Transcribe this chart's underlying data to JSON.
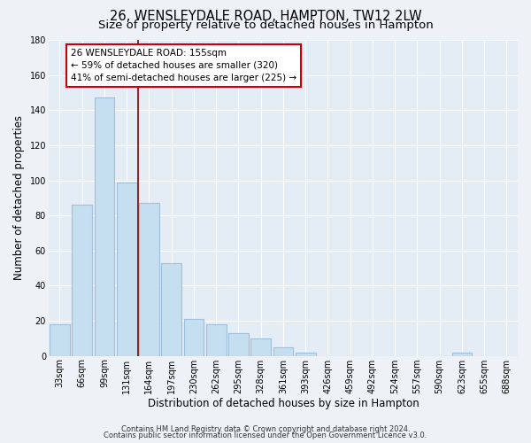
{
  "title": "26, WENSLEYDALE ROAD, HAMPTON, TW12 2LW",
  "subtitle": "Size of property relative to detached houses in Hampton",
  "xlabel": "Distribution of detached houses by size in Hampton",
  "ylabel": "Number of detached properties",
  "bar_labels": [
    "33sqm",
    "66sqm",
    "99sqm",
    "131sqm",
    "164sqm",
    "197sqm",
    "230sqm",
    "262sqm",
    "295sqm",
    "328sqm",
    "361sqm",
    "393sqm",
    "426sqm",
    "459sqm",
    "492sqm",
    "524sqm",
    "557sqm",
    "590sqm",
    "623sqm",
    "655sqm",
    "688sqm"
  ],
  "bar_values": [
    18,
    86,
    147,
    99,
    87,
    53,
    21,
    18,
    13,
    10,
    5,
    2,
    0,
    0,
    0,
    0,
    0,
    0,
    2,
    0,
    0
  ],
  "bar_color": "#c6dff0",
  "bar_edge_color": "#a0bfd8",
  "red_line_bar_index": 3,
  "red_line_color": "#8b0000",
  "annotation_text_line1": "26 WENSLEYDALE ROAD: 155sqm",
  "annotation_text_line2": "← 59% of detached houses are smaller (320)",
  "annotation_text_line3": "41% of semi-detached houses are larger (225) →",
  "ylim": [
    0,
    180
  ],
  "yticks": [
    0,
    20,
    40,
    60,
    80,
    100,
    120,
    140,
    160,
    180
  ],
  "footer_line1": "Contains HM Land Registry data © Crown copyright and database right 2024.",
  "footer_line2": "Contains public sector information licensed under the Open Government Licence v3.0.",
  "bg_color": "#eef2f7",
  "plot_bg_color": "#e4ecf5",
  "grid_color": "#ffffff",
  "title_fontsize": 10.5,
  "subtitle_fontsize": 9.5,
  "axis_label_fontsize": 8.5,
  "tick_fontsize": 7,
  "footer_fontsize": 6,
  "annotation_fontsize": 7.5
}
